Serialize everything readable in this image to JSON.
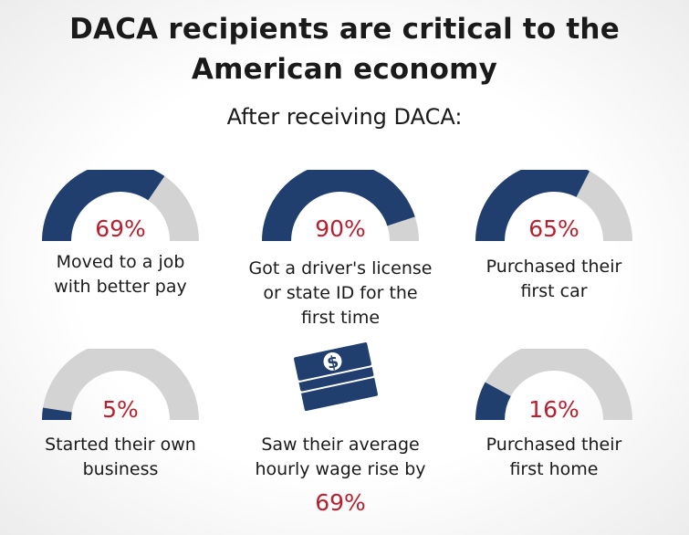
{
  "title_line1": "DACA recipients are critical to the",
  "title_line2": "American economy",
  "subtitle": "After receiving DACA:",
  "colors": {
    "filled": "#213f6e",
    "empty": "#d3d3d3",
    "accent": "#b8202f"
  },
  "chart_data": {
    "type": "gauge",
    "title": "DACA recipients are critical to the American economy",
    "subtitle": "After receiving DACA:",
    "items": [
      {
        "value": 69,
        "value_label": "69%",
        "label_lines": [
          "Moved to a job",
          "with better pay"
        ]
      },
      {
        "value": 90,
        "value_label": "90%",
        "label_lines": [
          "Got a driver's license",
          "or state ID for the",
          "first time"
        ]
      },
      {
        "value": 65,
        "value_label": "65%",
        "label_lines": [
          "Purchased their",
          "first car"
        ]
      },
      {
        "value": 5,
        "value_label": "5%",
        "label_lines": [
          "Started their own",
          "business"
        ]
      },
      {
        "value": 69,
        "value_label": "69%",
        "label_lines": [
          "Saw their average",
          "hourly wage rise by"
        ],
        "icon": "money-stack-icon",
        "icon_symbol": "$"
      },
      {
        "value": 16,
        "value_label": "16%",
        "label_lines": [
          "Purchased their",
          "first home"
        ]
      }
    ]
  }
}
